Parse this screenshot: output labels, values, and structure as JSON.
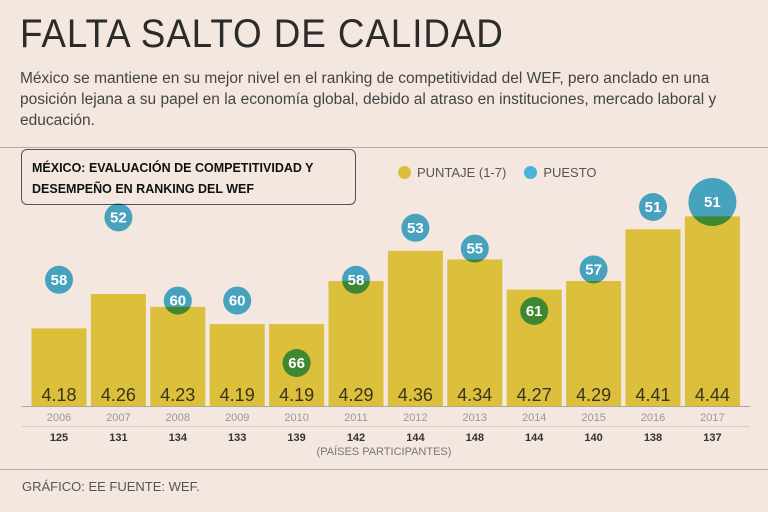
{
  "header": {
    "title": "FALTA SALTO DE CALIDAD",
    "subtitle": "México se mantiene en su mejor nivel en el ranking de competitividad del WEF, pero anclado en una posición lejana a su papel en la economía global, debido al atraso en instituciones, mercado laboral y educación."
  },
  "chart_data": {
    "type": "bar",
    "title": "MÉXICO: EVALUACIÓN DE COMPETITIVIDAD Y DESEMPEÑO EN RANKING DEL WEF",
    "categories": [
      "2006",
      "2007",
      "2008",
      "2009",
      "2010",
      "2011",
      "2012",
      "2013",
      "2014",
      "2015",
      "2016",
      "2017"
    ],
    "series": [
      {
        "name": "PUNTAJE (1-7)",
        "color": "#dcbf3a",
        "values": [
          4.18,
          4.26,
          4.23,
          4.19,
          4.19,
          4.29,
          4.36,
          4.34,
          4.27,
          4.29,
          4.41,
          4.44
        ]
      },
      {
        "name": "PUESTO",
        "color": "#4ab4d8",
        "values": [
          58,
          52,
          60,
          60,
          66,
          58,
          53,
          55,
          61,
          57,
          51,
          51
        ]
      }
    ],
    "participants": [
      125,
      131,
      134,
      133,
      139,
      142,
      144,
      148,
      144,
      140,
      138,
      137
    ],
    "participants_label": "(PAÍSES PARTICIPANTES)",
    "ylim": [
      4.0,
      4.45
    ],
    "legend": "top"
  },
  "footer": "GRÁFICO: EE  FUENTE: WEF."
}
